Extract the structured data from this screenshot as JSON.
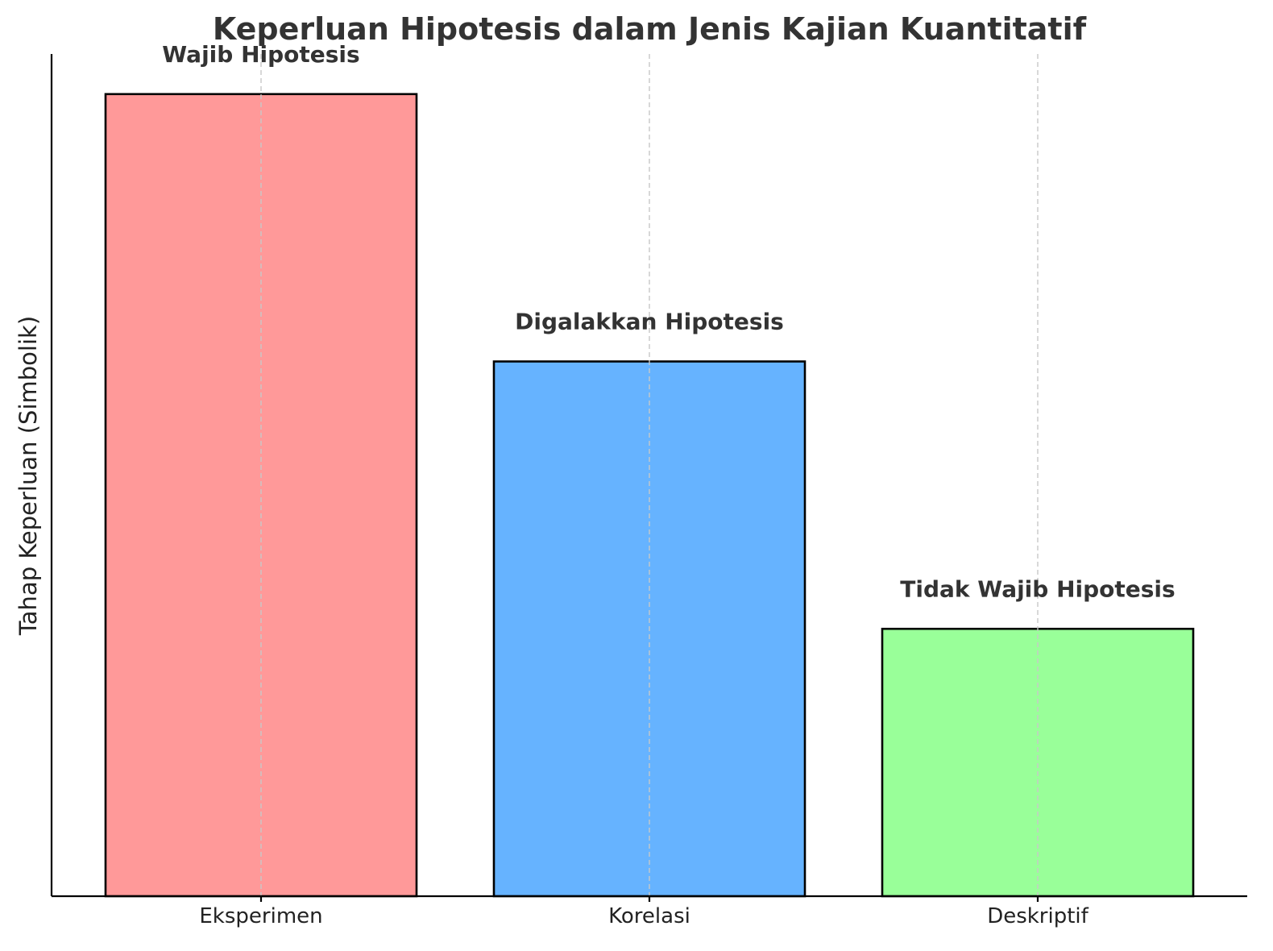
{
  "chart_data": {
    "type": "bar",
    "title": "Keperluan Hipotesis dalam Jenis Kajian Kuantitatif",
    "xlabel": "",
    "ylabel": "Tahap Keperluan (Simbolik)",
    "categories": [
      "Eksperimen",
      "Korelasi",
      "Deskriptif"
    ],
    "values": [
      3,
      2,
      1
    ],
    "bar_labels": [
      "Wajib Hipotesis",
      "Digalakkan Hipotesis",
      "Tidak Wajib Hipotesis"
    ],
    "colors": [
      "#ff9999",
      "#66b3ff",
      "#99ff99"
    ],
    "ylim": [
      0,
      3.15
    ],
    "grid": "x-dashed",
    "legend": "none",
    "y_ticks_visible": false
  }
}
